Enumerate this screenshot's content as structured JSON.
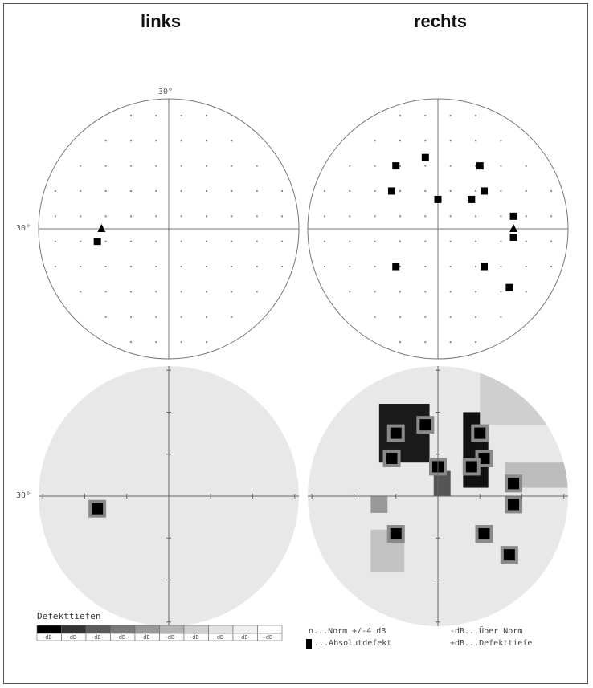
{
  "titles": {
    "left": "links",
    "right": "rechts"
  },
  "axis_labels": {
    "left_top": "30°",
    "left_side": "30°",
    "left_bottom_side": "30°"
  },
  "legend": {
    "title": "Defekttiefen",
    "scale_labels": [
      "-dB",
      "-dB",
      "-dB",
      "-dB",
      "-dB",
      "-dB",
      "-dB",
      "-dB",
      "-dB",
      "+dB"
    ],
    "scale_colors": [
      "#000000",
      "#333333",
      "#5a5a5a",
      "#7a7a7a",
      "#999999",
      "#b5b5b5",
      "#cfcfcf",
      "#e2e2e2",
      "#efefef",
      "#ffffff"
    ],
    "key": {
      "norm": "o...Norm +/-4 dB",
      "over": "-dB...Über Norm",
      "absolute": "...Absolutdefekt",
      "depth": "+dB...Defekttiefe"
    }
  },
  "colors": {
    "line": "#777777",
    "dot": "#888888",
    "defect": "#000000",
    "gray_fill": "#e8e8e8"
  },
  "chart_data": {
    "type": "visual-field-perimetry",
    "fields": [
      {
        "eye": "links",
        "absolute_defects": [
          [
            -17,
            -3
          ]
        ],
        "relative_defects_triangle": [
          [
            -16,
            0
          ]
        ]
      },
      {
        "eye": "rechts",
        "absolute_defects": [
          [
            -10,
            15
          ],
          [
            -3,
            17
          ],
          [
            -11,
            9
          ],
          [
            0,
            7
          ],
          [
            10,
            15
          ],
          [
            11,
            9
          ],
          [
            8,
            7
          ],
          [
            18,
            3
          ],
          [
            18,
            -2
          ],
          [
            -10,
            -9
          ],
          [
            11,
            -9
          ],
          [
            17,
            -14
          ]
        ],
        "relative_defects_triangle": [
          [
            18,
            0
          ]
        ]
      }
    ]
  }
}
